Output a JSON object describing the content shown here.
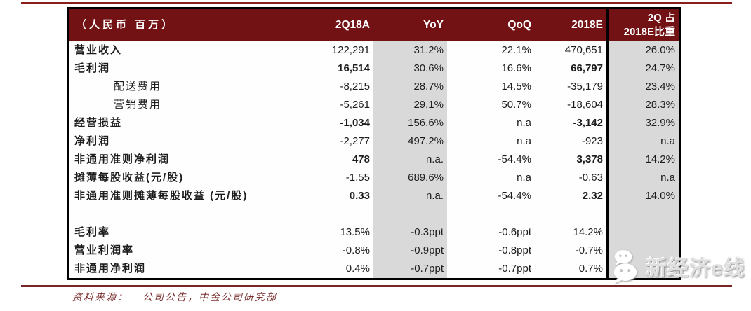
{
  "colors": {
    "header_bg": "#731215",
    "band_gray": "#d9d9d9",
    "table_border": "#000000",
    "rule_red": "#8b1c1c",
    "source_text": "#7a2f2f"
  },
  "chart_data": {
    "type": "table",
    "unit_header": "（人民币 百万）",
    "columns": [
      "2Q18A",
      "YoY",
      "QoQ",
      "2018E",
      "2Q 占 2018E比重"
    ],
    "last_column_header_lines": [
      "2Q 占",
      "2018E比重"
    ],
    "rows": [
      {
        "label": "营业收入",
        "indent": false,
        "bold": false,
        "spacer": false,
        "values": [
          "122,291",
          "31.2%",
          "22.1%",
          "470,651",
          "26.0%"
        ]
      },
      {
        "label": "毛利润",
        "indent": false,
        "bold": true,
        "spacer": false,
        "values": [
          "16,514",
          "30.6%",
          "16.6%",
          "66,797",
          "24.7%"
        ]
      },
      {
        "label": "配送费用",
        "indent": true,
        "bold": false,
        "spacer": false,
        "values": [
          "-8,215",
          "28.7%",
          "14.5%",
          "-35,179",
          "23.4%"
        ]
      },
      {
        "label": "营销费用",
        "indent": true,
        "bold": false,
        "spacer": false,
        "values": [
          "-5,261",
          "29.1%",
          "50.7%",
          "-18,604",
          "28.3%"
        ]
      },
      {
        "label": "经营损益",
        "indent": false,
        "bold": true,
        "spacer": false,
        "values": [
          "-1,034",
          "156.6%",
          "n.a",
          "-3,142",
          "32.9%"
        ]
      },
      {
        "label": "净利润",
        "indent": false,
        "bold": false,
        "spacer": false,
        "values": [
          "-2,277",
          "497.2%",
          "n.a",
          "-923",
          "n.a"
        ]
      },
      {
        "label": "非通用准则净利润",
        "indent": false,
        "bold": true,
        "spacer": false,
        "values": [
          "478",
          "n.a.",
          "-54.4%",
          "3,378",
          "14.2%"
        ]
      },
      {
        "label": "摊薄每股收益(元/股)",
        "indent": false,
        "bold": false,
        "spacer": false,
        "values": [
          "-1.55",
          "689.6%",
          "n.a",
          "-0.63",
          "n.a"
        ]
      },
      {
        "label": "非通用准则摊薄每股收益 (元/股)",
        "indent": false,
        "bold": true,
        "spacer": false,
        "values": [
          "0.33",
          "n.a.",
          "-54.4%",
          "2.32",
          "14.0%"
        ]
      },
      {
        "label": "",
        "indent": false,
        "bold": false,
        "spacer": true,
        "values": [
          "",
          "",
          "",
          "",
          ""
        ]
      },
      {
        "label": "毛利率",
        "indent": false,
        "bold": false,
        "spacer": false,
        "values": [
          "13.5%",
          "-0.3ppt",
          "-0.6ppt",
          "14.2%",
          ""
        ]
      },
      {
        "label": "营业利润率",
        "indent": false,
        "bold": false,
        "spacer": false,
        "values": [
          "-0.8%",
          "-0.9ppt",
          "-0.8ppt",
          "-0.7%",
          ""
        ]
      },
      {
        "label": "非通用净利润",
        "indent": false,
        "bold": false,
        "spacer": false,
        "values": [
          "0.4%",
          "-0.7ppt",
          "-0.7ppt",
          "0.7%",
          ""
        ]
      }
    ]
  },
  "source": {
    "prefix": "资料来源：",
    "body": "公司公告，中金公司研究部"
  },
  "watermark": {
    "icon": "wechat-icon",
    "text": "新经济e线"
  }
}
